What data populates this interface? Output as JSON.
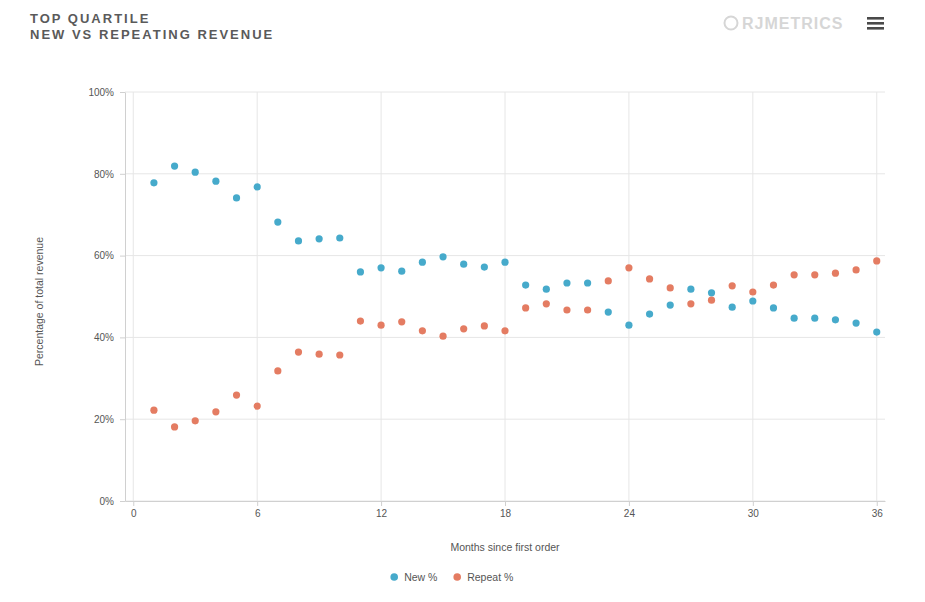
{
  "chart_data": {
    "type": "scatter",
    "title": "TOP QUARTILE",
    "subtitle": "NEW VS REPEATING REVENUE",
    "annotations": [
      "RJMETRICS"
    ],
    "x_label": "Months since first order",
    "y_label": "Percentage of total revenue",
    "x": [
      1,
      2,
      3,
      4,
      5,
      6,
      7,
      8,
      9,
      10,
      11,
      12,
      13,
      14,
      15,
      16,
      17,
      18,
      19,
      20,
      21,
      22,
      23,
      24,
      25,
      26,
      27,
      28,
      29,
      30,
      31,
      32,
      33,
      34,
      35,
      36
    ],
    "series": [
      {
        "name": "New %",
        "color": "#46aacb",
        "marker": "circle",
        "values": [
          77.8,
          81.9,
          80.4,
          78.2,
          74.1,
          76.8,
          68.2,
          63.6,
          64.1,
          64.3,
          56.0,
          57.0,
          56.2,
          58.4,
          59.7,
          57.9,
          57.2,
          58.4,
          52.8,
          51.8,
          53.3,
          53.3,
          46.2,
          43.0,
          45.7,
          47.9,
          51.8,
          50.9,
          47.4,
          48.9,
          47.2,
          44.7,
          44.7,
          44.3,
          43.5,
          41.3
        ]
      },
      {
        "name": "Repeat %",
        "color": "#e47c62",
        "marker": "circle",
        "values": [
          22.2,
          18.1,
          19.6,
          21.8,
          25.9,
          23.2,
          31.8,
          36.4,
          35.9,
          35.7,
          44.0,
          43.0,
          43.8,
          41.6,
          40.3,
          42.1,
          42.8,
          41.6,
          47.2,
          48.2,
          46.7,
          46.7,
          53.8,
          57.0,
          54.3,
          52.1,
          48.2,
          49.1,
          52.6,
          51.1,
          52.8,
          55.3,
          55.3,
          55.7,
          56.5,
          58.7
        ]
      }
    ],
    "xlim": [
      -0.4,
      36.4
    ],
    "xticks": [
      0,
      6,
      12,
      18,
      24,
      30,
      36
    ],
    "ylim": [
      0,
      100
    ],
    "yticks": [
      {
        "value": 0,
        "label": "0%"
      },
      {
        "value": 20,
        "label": "20%"
      },
      {
        "value": 40,
        "label": "40%"
      },
      {
        "value": 60,
        "label": "60%"
      },
      {
        "value": 80,
        "label": "80%"
      },
      {
        "value": 100,
        "label": "100%"
      }
    ],
    "grid": true,
    "legend": "bottom"
  }
}
